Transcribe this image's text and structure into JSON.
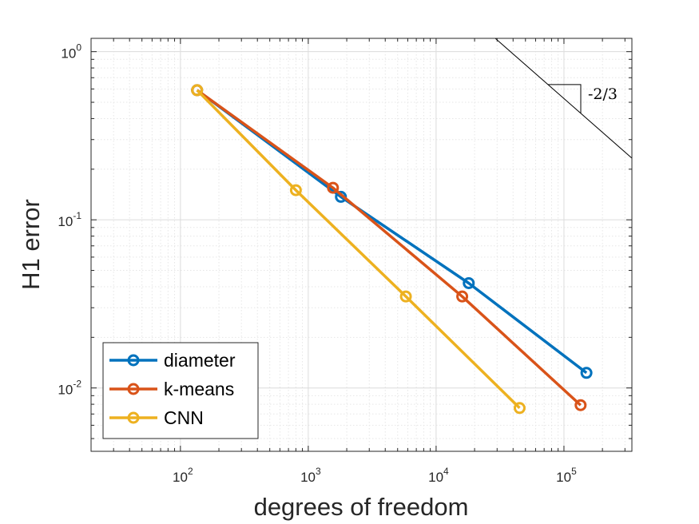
{
  "chart_data": {
    "type": "line",
    "xlabel": "degrees of freedom",
    "ylabel": "H1 error",
    "x_scale": "log",
    "y_scale": "log",
    "xlim": [
      20,
      340000
    ],
    "ylim": [
      0.0042,
      1.2
    ],
    "x_ticks": [
      100,
      1000,
      10000,
      100000
    ],
    "x_tick_labels": [
      {
        "base": "10",
        "exp": "2"
      },
      {
        "base": "10",
        "exp": "3"
      },
      {
        "base": "10",
        "exp": "4"
      },
      {
        "base": "10",
        "exp": "5"
      }
    ],
    "y_ticks": [
      0.01,
      0.1,
      1
    ],
    "y_tick_labels": [
      {
        "base": "10",
        "exp": "-2"
      },
      {
        "base": "10",
        "exp": "-1"
      },
      {
        "base": "10",
        "exp": "0"
      }
    ],
    "grid": true,
    "minor_grid": true,
    "legend_position": "bottom-left",
    "series": [
      {
        "name": "diameter",
        "color": "#0072BD",
        "marker": "circle",
        "x": [
          135,
          1800,
          18000,
          150000
        ],
        "y": [
          0.59,
          0.137,
          0.042,
          0.0123
        ]
      },
      {
        "name": "k-means",
        "color": "#D95319",
        "marker": "circle",
        "x": [
          135,
          1560,
          16000,
          135000
        ],
        "y": [
          0.59,
          0.155,
          0.035,
          0.0079
        ]
      },
      {
        "name": "CNN",
        "color": "#EDB120",
        "marker": "circle",
        "x": [
          135,
          800,
          5800,
          45000
        ],
        "y": [
          0.59,
          0.15,
          0.035,
          0.0076
        ]
      }
    ],
    "annotations": [
      {
        "type": "slope-triangle",
        "label": "-2/3",
        "slope": -0.6667
      }
    ]
  }
}
